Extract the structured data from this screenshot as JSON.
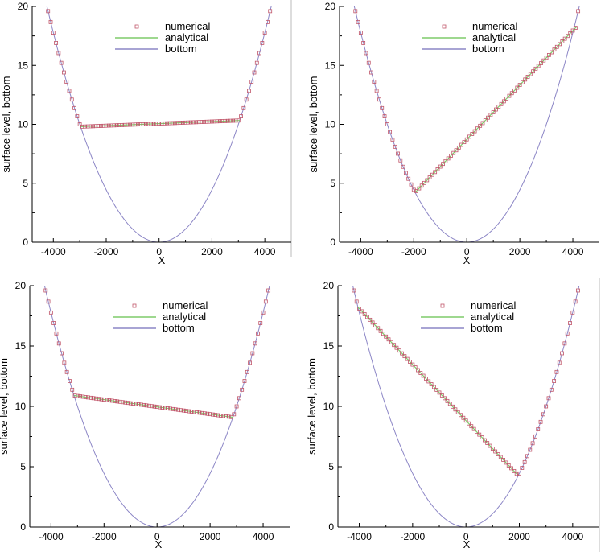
{
  "colors": {
    "numerical": "#c0566a",
    "analytical": "#7fcc6a",
    "bottom": "#8c86c6"
  },
  "chart_data": [
    {
      "type": "line",
      "panel": "top-left",
      "xlabel": "X",
      "ylabel": "surface level, bottom",
      "xlim": [
        -4800,
        5000
      ],
      "ylim": [
        0,
        20
      ],
      "xticks": [
        "-4000",
        "-2000",
        "0",
        "2000",
        "4000"
      ],
      "yticks": [
        "0",
        "5",
        "10",
        "15",
        "20"
      ],
      "legend": {
        "placement": "top-center",
        "entries": [
          "numerical",
          "analytical",
          "bottom"
        ]
      },
      "bottom_curve": "y = x^2 / 900000",
      "water_line": {
        "x_start": -2970,
        "y_start": 9.8,
        "x_end": 3050,
        "y_end": 10.33
      }
    },
    {
      "type": "line",
      "panel": "top-right",
      "xlabel": "X",
      "ylabel": "surface level, bottom",
      "xlim": [
        -4800,
        5000
      ],
      "ylim": [
        0,
        20
      ],
      "xticks": [
        "-4000",
        "-2000",
        "0",
        "2000",
        "4000"
      ],
      "yticks": [
        "0",
        "5",
        "10",
        "15",
        "20"
      ],
      "legend": {
        "placement": "top-center",
        "entries": [
          "numerical",
          "analytical",
          "bottom"
        ]
      },
      "bottom_curve": "y = x^2 / 900000",
      "water_line": {
        "x_start": -1950,
        "y_start": 4.22,
        "x_end": 4150,
        "y_end": 18.3
      }
    },
    {
      "type": "line",
      "panel": "bottom-left",
      "xlabel": "X",
      "ylabel": "surface level, bottom",
      "xlim": [
        -4800,
        5000
      ],
      "ylim": [
        0,
        20
      ],
      "xticks": [
        "-4000",
        "-2000",
        "0",
        "2000",
        "4000"
      ],
      "yticks": [
        "0",
        "5",
        "10",
        "15",
        "20"
      ],
      "legend": {
        "placement": "top-center",
        "entries": [
          "numerical",
          "analytical",
          "bottom"
        ]
      },
      "bottom_curve": "y = x^2 / 900000",
      "water_line": {
        "x_start": -3130,
        "y_start": 10.9,
        "x_end": 2850,
        "y_end": 9.1
      }
    },
    {
      "type": "line",
      "panel": "bottom-right",
      "xlabel": "X",
      "ylabel": "surface level, bottom",
      "xlim": [
        -4800,
        5000
      ],
      "ylim": [
        0,
        20
      ],
      "xticks": [
        "-4000",
        "-2000",
        "0",
        "2000",
        "4000"
      ],
      "yticks": [
        "0",
        "5",
        "10",
        "15",
        "20"
      ],
      "legend": {
        "placement": "top-center",
        "entries": [
          "numerical",
          "analytical",
          "bottom"
        ]
      },
      "bottom_curve": "y = x^2 / 900000",
      "water_line": {
        "x_start": -4050,
        "y_start": 18.22,
        "x_end": 1960,
        "y_end": 4.27
      }
    }
  ]
}
